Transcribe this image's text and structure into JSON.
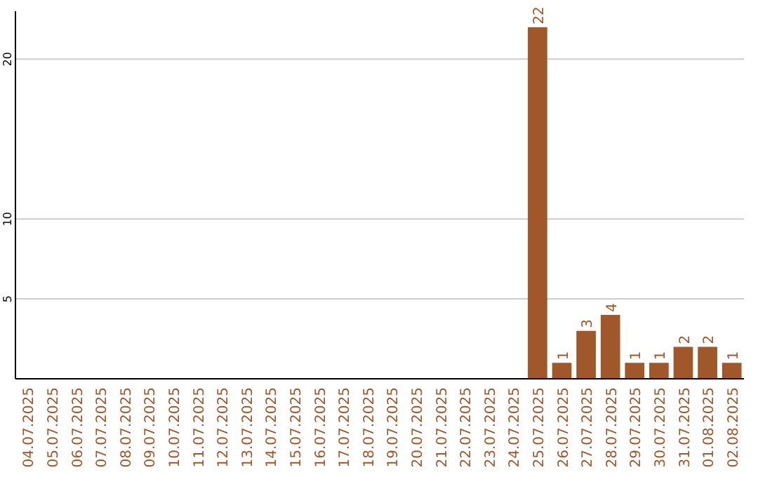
{
  "chart_data": {
    "type": "bar",
    "categories": [
      "04.07.2025",
      "05.07.2025",
      "06.07.2025",
      "07.07.2025",
      "08.07.2025",
      "09.07.2025",
      "10.07.2025",
      "11.07.2025",
      "12.07.2025",
      "13.07.2025",
      "14.07.2025",
      "15.07.2025",
      "16.07.2025",
      "17.07.2025",
      "18.07.2025",
      "19.07.2025",
      "20.07.2025",
      "21.07.2025",
      "22.07.2025",
      "23.07.2025",
      "24.07.2025",
      "25.07.2025",
      "26.07.2025",
      "27.07.2025",
      "28.07.2025",
      "29.07.2025",
      "30.07.2025",
      "31.07.2025",
      "01.08.2025",
      "02.08.2025"
    ],
    "values": [
      0,
      0,
      0,
      0,
      0,
      0,
      0,
      0,
      0,
      0,
      0,
      0,
      0,
      0,
      0,
      0,
      0,
      0,
      0,
      0,
      0,
      22,
      1,
      3,
      4,
      1,
      1,
      2,
      2,
      1
    ],
    "value_labels": [
      null,
      null,
      null,
      null,
      null,
      null,
      null,
      null,
      null,
      null,
      null,
      null,
      null,
      null,
      null,
      null,
      null,
      null,
      null,
      null,
      null,
      "22",
      "1",
      "3",
      "4",
      "1",
      "1",
      "2",
      "2",
      "1"
    ],
    "color": "#a0572a",
    "ylim": [
      0,
      23
    ],
    "yticks": [
      5,
      10,
      20
    ],
    "grid": "y"
  }
}
